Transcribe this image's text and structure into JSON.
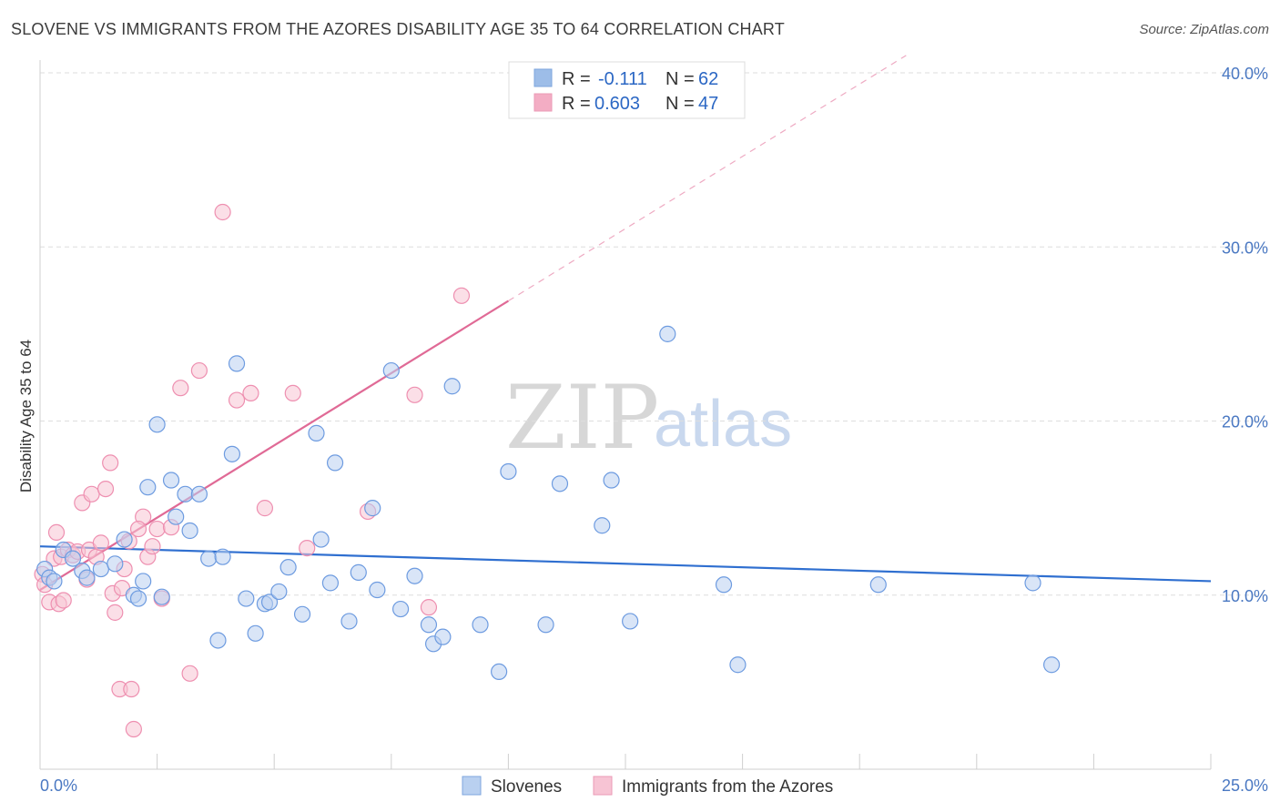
{
  "header": {
    "title": "SLOVENE VS IMMIGRANTS FROM THE AZORES DISABILITY AGE 35 TO 64 CORRELATION CHART",
    "source": "Source: ZipAtlas.com"
  },
  "watermark": {
    "zip": "ZIP",
    "atlas": "atlas"
  },
  "legend": {
    "rows": [
      {
        "r_label": "R =",
        "r_value": "-0.111",
        "n_label": "N =",
        "n_value": "62",
        "color": "#9dbde8"
      },
      {
        "r_label": "R =",
        "r_value": "0.603",
        "n_label": "N =",
        "n_value": "47",
        "color": "#f3adc4"
      }
    ]
  },
  "chart_data": {
    "type": "scatter",
    "title": "SLOVENE VS IMMIGRANTS FROM THE AZORES DISABILITY AGE 35 TO 64 CORRELATION CHART",
    "ylabel": "Disability Age 35 to 64",
    "xlabel": "",
    "xlim": [
      0,
      25
    ],
    "ylim": [
      0,
      40
    ],
    "x_tick_labels": [
      "0.0%",
      "25.0%"
    ],
    "y_tick_labels": [
      "10.0%",
      "20.0%",
      "30.0%",
      "40.0%"
    ],
    "y_ticks": [
      10,
      20,
      30,
      40
    ],
    "grid": true,
    "legend_position": "top-center",
    "series": [
      {
        "name": "Slovenes",
        "color": "#6d9be0",
        "fill": "#b9d0f0",
        "trend": {
          "x": [
            0,
            25
          ],
          "y": [
            12.8,
            10.8
          ]
        },
        "points": [
          [
            0.1,
            11.5
          ],
          [
            0.2,
            11.0
          ],
          [
            0.3,
            10.8
          ],
          [
            0.5,
            12.6
          ],
          [
            0.7,
            12.1
          ],
          [
            0.9,
            11.4
          ],
          [
            1.0,
            11.0
          ],
          [
            1.3,
            11.5
          ],
          [
            1.6,
            11.8
          ],
          [
            1.8,
            13.2
          ],
          [
            2.0,
            10.0
          ],
          [
            2.1,
            9.8
          ],
          [
            2.2,
            10.8
          ],
          [
            2.3,
            16.2
          ],
          [
            2.5,
            19.8
          ],
          [
            2.6,
            9.9
          ],
          [
            2.8,
            16.6
          ],
          [
            2.9,
            14.5
          ],
          [
            3.1,
            15.8
          ],
          [
            3.2,
            13.7
          ],
          [
            3.4,
            15.8
          ],
          [
            3.6,
            12.1
          ],
          [
            3.8,
            7.4
          ],
          [
            3.9,
            12.2
          ],
          [
            4.1,
            18.1
          ],
          [
            4.2,
            23.3
          ],
          [
            4.4,
            9.8
          ],
          [
            4.6,
            7.8
          ],
          [
            4.8,
            9.5
          ],
          [
            4.9,
            9.6
          ],
          [
            5.1,
            10.2
          ],
          [
            5.3,
            11.6
          ],
          [
            5.6,
            8.9
          ],
          [
            5.9,
            19.3
          ],
          [
            6.0,
            13.2
          ],
          [
            6.2,
            10.7
          ],
          [
            6.3,
            17.6
          ],
          [
            6.6,
            8.5
          ],
          [
            6.8,
            11.3
          ],
          [
            7.1,
            15.0
          ],
          [
            7.2,
            10.3
          ],
          [
            7.5,
            22.9
          ],
          [
            7.7,
            9.2
          ],
          [
            8.0,
            11.1
          ],
          [
            8.3,
            8.3
          ],
          [
            8.4,
            7.2
          ],
          [
            8.6,
            7.6
          ],
          [
            8.8,
            22.0
          ],
          [
            9.4,
            8.3
          ],
          [
            9.8,
            5.6
          ],
          [
            10.0,
            17.1
          ],
          [
            10.8,
            8.3
          ],
          [
            11.1,
            16.4
          ],
          [
            12.0,
            14.0
          ],
          [
            12.2,
            16.6
          ],
          [
            12.6,
            8.5
          ],
          [
            13.4,
            25.0
          ],
          [
            14.6,
            10.6
          ],
          [
            14.9,
            6.0
          ],
          [
            17.9,
            10.6
          ],
          [
            21.2,
            10.7
          ],
          [
            21.6,
            6.0
          ]
        ]
      },
      {
        "name": "Immigrants from the Azores",
        "color": "#ee8fb0",
        "fill": "#f7c4d4",
        "trend": {
          "x": [
            0,
            10
          ],
          "y": [
            10.3,
            26.9
          ]
        },
        "points": [
          [
            0.05,
            11.2
          ],
          [
            0.1,
            10.6
          ],
          [
            0.2,
            9.6
          ],
          [
            0.3,
            12.1
          ],
          [
            0.35,
            13.6
          ],
          [
            0.4,
            9.5
          ],
          [
            0.45,
            12.2
          ],
          [
            0.5,
            9.7
          ],
          [
            0.6,
            12.6
          ],
          [
            0.7,
            12.3
          ],
          [
            0.8,
            12.5
          ],
          [
            0.9,
            15.3
          ],
          [
            1.0,
            10.9
          ],
          [
            1.05,
            12.6
          ],
          [
            1.1,
            15.8
          ],
          [
            1.2,
            12.2
          ],
          [
            1.3,
            13.0
          ],
          [
            1.4,
            16.1
          ],
          [
            1.5,
            17.6
          ],
          [
            1.55,
            10.1
          ],
          [
            1.6,
            9.0
          ],
          [
            1.7,
            4.6
          ],
          [
            1.75,
            10.4
          ],
          [
            1.8,
            11.5
          ],
          [
            1.9,
            13.1
          ],
          [
            1.95,
            4.6
          ],
          [
            2.0,
            2.3
          ],
          [
            2.2,
            14.5
          ],
          [
            2.3,
            12.2
          ],
          [
            2.4,
            12.8
          ],
          [
            2.5,
            13.8
          ],
          [
            2.6,
            9.8
          ],
          [
            2.8,
            13.9
          ],
          [
            3.0,
            21.9
          ],
          [
            3.2,
            5.5
          ],
          [
            3.4,
            22.9
          ],
          [
            3.9,
            32.0
          ],
          [
            4.2,
            21.2
          ],
          [
            4.5,
            21.6
          ],
          [
            4.8,
            15.0
          ],
          [
            5.4,
            21.6
          ],
          [
            5.7,
            12.7
          ],
          [
            7.0,
            14.8
          ],
          [
            8.0,
            21.5
          ],
          [
            8.3,
            9.3
          ],
          [
            9.0,
            27.2
          ],
          [
            2.1,
            13.8
          ]
        ]
      }
    ]
  },
  "bottom_legend": {
    "items": [
      {
        "label": "Slovenes"
      },
      {
        "label": "Immigrants from the Azores"
      }
    ]
  }
}
